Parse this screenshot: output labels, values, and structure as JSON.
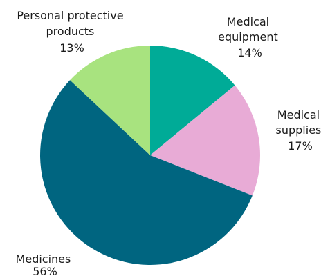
{
  "chart_data": {
    "type": "pie",
    "start_angle_deg": 0,
    "direction": "clockwise",
    "slices": [
      {
        "label_lines": [
          "Medical",
          "equipment"
        ],
        "value": 14,
        "value_label": "14%",
        "color": "#00ab97"
      },
      {
        "label_lines": [
          "Medical",
          "supplies"
        ],
        "value": 17,
        "value_label": "17%",
        "color": "#e8abd6"
      },
      {
        "label_lines": [
          "Medicines"
        ],
        "value": 56,
        "value_label": "56%",
        "color": "#006580"
      },
      {
        "label_lines": [
          "Personal protective",
          "products"
        ],
        "value": 13,
        "value_label": "13%",
        "color": "#a8e37f"
      }
    ]
  }
}
